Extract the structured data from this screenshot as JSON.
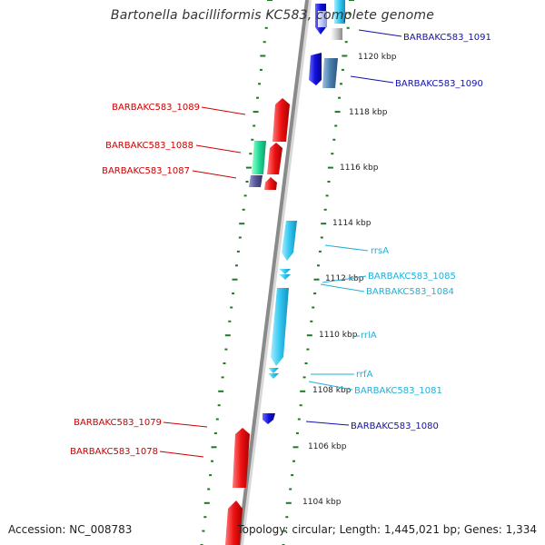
{
  "title": "Bartonella bacilliformis KC583, complete genome",
  "accession": "Accession: NC_008783",
  "topology": "Topology: circular; Length: 1,445,021 bp; Genes: 1,334",
  "colors": {
    "backbone": "#8a8a8a",
    "ticks": "#1f7a1f",
    "plus_strand_cds": "#ee1111",
    "minus_strand_cds": "#1010dd",
    "rna": "#33c8f0",
    "pseudo_plus": "#22dd99",
    "pseudo_minus": "#555599",
    "label_red": "#cc0000",
    "label_blue": "#1111aa",
    "label_cyan": "#22b0d8"
  },
  "scale_labels": [
    "1120 kbp",
    "1118 kbp",
    "1116 kbp",
    "1114 kbp",
    "1112 kbp",
    "1110 kbp",
    "1108 kbp",
    "1106 kbp",
    "1104 kbp"
  ],
  "gene_labels": {
    "BARBAKC583_1091": "BARBAKC583_1091",
    "BARBAKC583_1090": "BARBAKC583_1090",
    "BARBAKC583_1089": "BARBAKC583_1089",
    "BARBAKC583_1088": "BARBAKC583_1088",
    "BARBAKC583_1087": "BARBAKC583_1087",
    "rrsA": "rrsA",
    "BARBAKC583_1085": "BARBAKC583_1085",
    "BARBAKC583_1084": "BARBAKC583_1084",
    "rrlA": "rrlA",
    "rrfA": "rrfA",
    "BARBAKC583_1081": "BARBAKC583_1081",
    "BARBAKC583_1080": "BARBAKC583_1080",
    "BARBAKC583_1079": "BARBAKC583_1079",
    "BARBAKC583_1078": "BARBAKC583_1078"
  }
}
